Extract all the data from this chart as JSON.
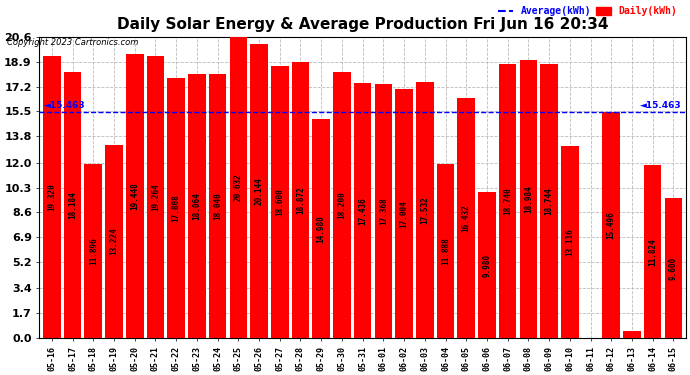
{
  "title": "Daily Solar Energy & Average Production Fri Jun 16 20:34",
  "copyright": "Copyright 2023 Cartronics.com",
  "bar_color": "#FF0000",
  "average_color": "#0000FF",
  "daily_color": "#FF0000",
  "average_value": 15.463,
  "categories": [
    "05-16",
    "05-17",
    "05-18",
    "05-19",
    "05-20",
    "05-21",
    "05-22",
    "05-23",
    "05-24",
    "05-25",
    "05-26",
    "05-27",
    "05-28",
    "05-29",
    "05-30",
    "05-31",
    "06-01",
    "06-02",
    "06-03",
    "06-04",
    "06-05",
    "06-06",
    "06-07",
    "06-08",
    "06-09",
    "06-10",
    "06-11",
    "06-12",
    "06-13",
    "06-14",
    "06-15"
  ],
  "values": [
    19.32,
    18.184,
    11.896,
    13.224,
    19.448,
    19.264,
    17.808,
    18.064,
    18.04,
    20.632,
    20.144,
    18.6,
    18.872,
    14.98,
    18.2,
    17.436,
    17.368,
    17.004,
    17.532,
    11.888,
    16.432,
    9.98,
    18.74,
    18.984,
    18.744,
    13.116,
    0.0,
    15.496,
    0.524,
    11.824,
    9.6
  ],
  "ylim": [
    0.0,
    20.6
  ],
  "yticks": [
    0.0,
    1.7,
    3.4,
    5.2,
    6.9,
    8.6,
    10.3,
    12.0,
    13.8,
    15.5,
    17.2,
    18.9,
    20.6
  ],
  "background_color": "#FFFFFF",
  "grid_color": "#BBBBBB",
  "title_fontsize": 11,
  "ylabel_fontsize": 8,
  "xlabel_fontsize": 6,
  "bar_label_fontsize": 5.5,
  "avg_label_left": "◄ 15.463",
  "avg_label_right": "◄ 15.463"
}
